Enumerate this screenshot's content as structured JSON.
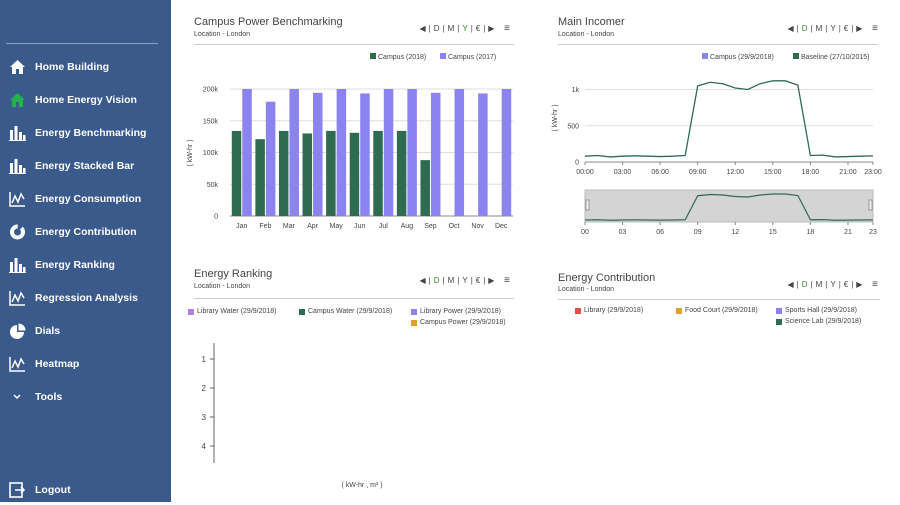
{
  "sidebar": {
    "items": [
      {
        "label": "Home Building",
        "icon": "home-icon"
      },
      {
        "label": "Home Energy Vision",
        "icon": "home-icon-green"
      },
      {
        "label": "Energy Benchmarking",
        "icon": "bar-chart-icon"
      },
      {
        "label": "Energy Stacked Bar",
        "icon": "bar-chart-icon"
      },
      {
        "label": "Energy Consumption",
        "icon": "line-chart-icon"
      },
      {
        "label": "Energy Contribution",
        "icon": "donut-icon"
      },
      {
        "label": "Energy Ranking",
        "icon": "bar-chart-icon"
      },
      {
        "label": "Regression Analysis",
        "icon": "line-chart-icon"
      },
      {
        "label": "Dials",
        "icon": "pie-icon"
      },
      {
        "label": "Heatmap",
        "icon": "line-chart-icon"
      },
      {
        "label": "Tools",
        "icon": "chevron-down-icon"
      }
    ],
    "logout": "Logout"
  },
  "controls": {
    "prev": "◀",
    "d": "D",
    "m": "M",
    "y": "Y",
    "cur": "€",
    "next": "▶",
    "menu": "≡",
    "sep": "|"
  },
  "panels": {
    "benchmark": {
      "title": "Campus Power Benchmarking",
      "subtitle": "Location - London",
      "selected": "Y"
    },
    "incomer": {
      "title": "Main Incomer",
      "subtitle": "Location - London",
      "selected": "D"
    },
    "ranking": {
      "title": "Energy Ranking",
      "subtitle": "Location - London",
      "selected": "D",
      "legend": [
        {
          "name": "Library Water (29/9/2018)",
          "color": "#b57ee0"
        },
        {
          "name": "Campus Water (29/9/2018)",
          "color": "#2e6b50"
        },
        {
          "name": "Library Power (29/9/2018)",
          "color": "#8b83f0"
        },
        {
          "name": "Campus Power (29/9/2018)",
          "color": "#e0a030"
        }
      ],
      "ticks": [
        "1",
        "2",
        "3",
        "4"
      ],
      "xlabel": "( kW-hr , m³ )"
    },
    "contribution": {
      "title": "Energy Contribution",
      "subtitle": "Location - London",
      "selected": "D",
      "legend": [
        {
          "name": "Library (29/9/2018)",
          "color": "#e05050"
        },
        {
          "name": "Food Court (29/9/2018)",
          "color": "#e0a030"
        },
        {
          "name": "Sports Hall (29/9/2018)",
          "color": "#8b83f0"
        },
        {
          "name": "Science Lab (29/9/2018)",
          "color": "#2e6b50"
        }
      ]
    }
  },
  "chart_data": [
    {
      "type": "bar",
      "categories": [
        "Jan",
        "Feb",
        "Mar",
        "Apr",
        "May",
        "Jun",
        "Jul",
        "Aug",
        "Sep",
        "Oct",
        "Nov",
        "Dec"
      ],
      "series": [
        {
          "name": "Campus (2018)",
          "color": "#2e6b50",
          "values": [
            134000,
            121000,
            134000,
            130000,
            134000,
            131000,
            134000,
            134000,
            88000,
            null,
            null,
            null
          ]
        },
        {
          "name": "Campus (2017)",
          "color": "#8b83f0",
          "values": [
            200000,
            180000,
            200000,
            194000,
            200000,
            193000,
            200000,
            200000,
            194000,
            200000,
            193000,
            200000
          ]
        }
      ],
      "ylabel": "( kW-hr )",
      "yticks": [
        "0",
        "50k",
        "100k",
        "150k",
        "200k"
      ],
      "ylim": [
        0,
        200000
      ],
      "grid": true
    },
    {
      "type": "line",
      "x_ticks": [
        "00:00",
        "03:00",
        "06:00",
        "09:00",
        "12:00",
        "15:00",
        "18:00",
        "21:00",
        "23:00"
      ],
      "nav_ticks": [
        "00",
        "03",
        "06",
        "09",
        "12",
        "15",
        "18",
        "21",
        "23"
      ],
      "series": [
        {
          "name": "Campus (29/9/2018)",
          "color": "#8b83f0",
          "values": []
        },
        {
          "name": "Baseline (27/10/2015)",
          "color": "#2e6b50",
          "x": [
            0,
            1,
            2,
            3,
            4,
            5,
            6,
            7,
            8,
            9,
            10,
            11,
            12,
            13,
            14,
            15,
            16,
            17,
            18,
            19,
            20,
            21,
            22,
            23
          ],
          "values": [
            80,
            90,
            70,
            80,
            85,
            80,
            75,
            80,
            90,
            1050,
            1100,
            1080,
            1020,
            1000,
            1080,
            1120,
            1120,
            1060,
            90,
            95,
            70,
            75,
            80,
            85
          ]
        }
      ],
      "ylabel": "( kW-hr )",
      "yticks": [
        "0",
        "500",
        "1k"
      ],
      "ylim": [
        0,
        1200
      ],
      "grid": true
    }
  ]
}
